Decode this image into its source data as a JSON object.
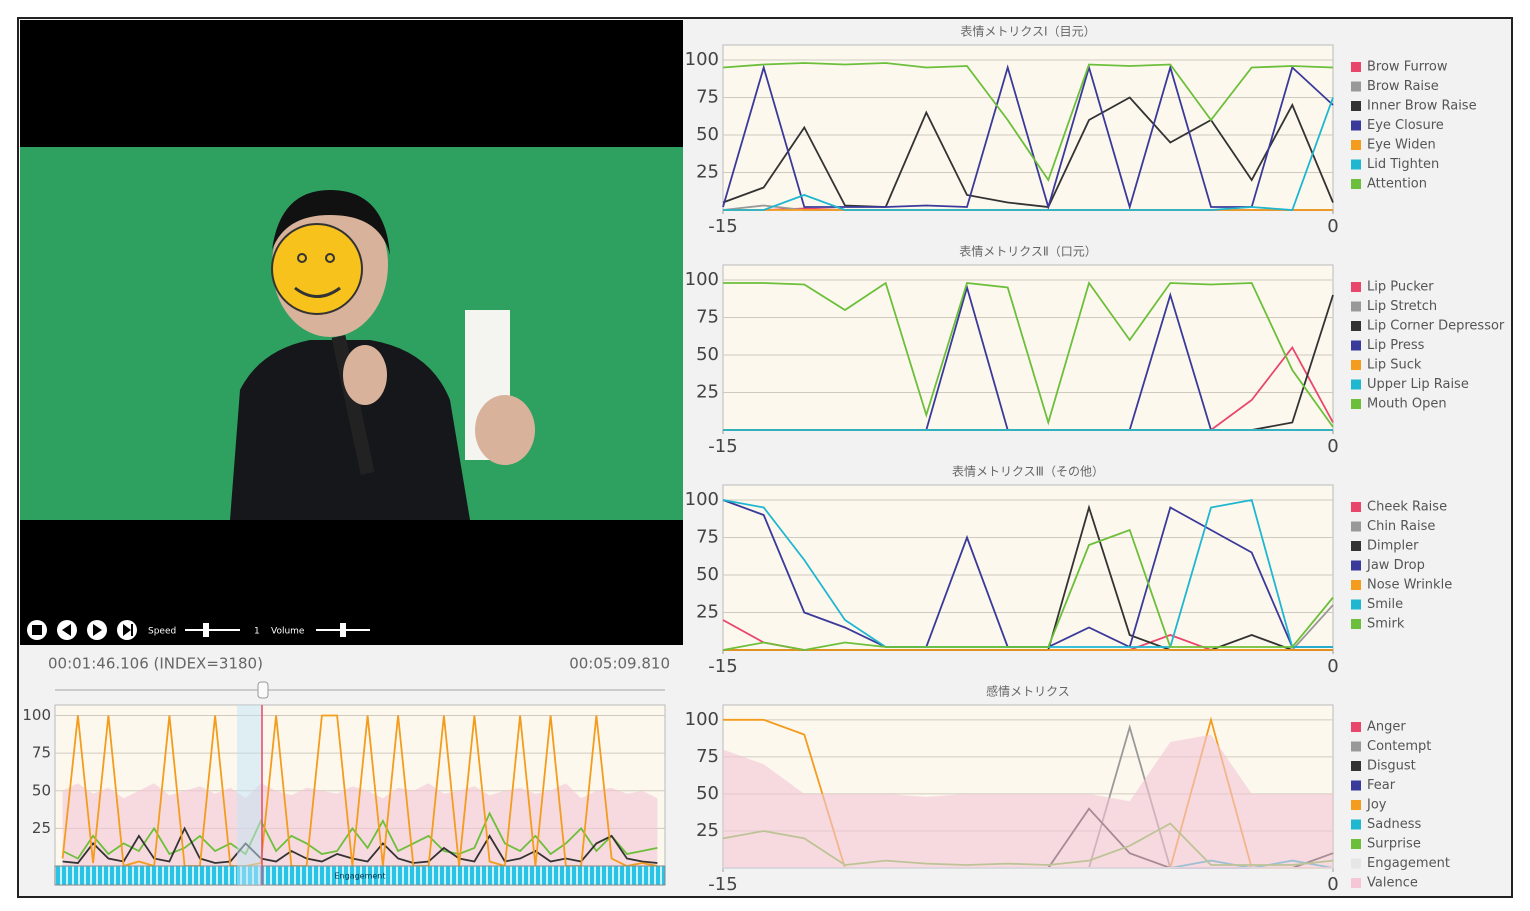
{
  "player": {
    "speed_label": "Speed",
    "speed_value": "1",
    "volume_label": "Volume",
    "current_time": "00:01:46.106 (INDEX=3180)",
    "total_time": "00:05:09.810",
    "band_label": "Engagement"
  },
  "chart_data": [
    {
      "type": "line",
      "ylim": [
        0,
        107
      ],
      "yticks": [
        25,
        50,
        75,
        100
      ],
      "grid": true,
      "series": [
        {
          "color": "#f4c6d6",
          "fill": true,
          "values": [
            50,
            55,
            48,
            52,
            45,
            50,
            55,
            47,
            50,
            53,
            48,
            52,
            45,
            55,
            50,
            47,
            52,
            50,
            48,
            53,
            50,
            45,
            52,
            50,
            55,
            48,
            50,
            53,
            47,
            50,
            52,
            48,
            50,
            55,
            45,
            50,
            52,
            48,
            50,
            45
          ]
        },
        {
          "color": "#6cbf3a",
          "values": [
            10,
            5,
            20,
            8,
            15,
            10,
            25,
            8,
            12,
            20,
            10,
            15,
            8,
            30,
            10,
            20,
            15,
            8,
            10,
            25,
            12,
            30,
            10,
            15,
            20,
            10,
            8,
            12,
            35,
            15,
            10,
            20,
            8,
            15,
            25,
            10,
            20,
            8,
            10,
            12
          ]
        },
        {
          "color": "#333333",
          "values": [
            3,
            2,
            15,
            5,
            3,
            20,
            5,
            3,
            25,
            5,
            2,
            3,
            15,
            5,
            3,
            10,
            5,
            3,
            8,
            5,
            3,
            15,
            5,
            2,
            3,
            12,
            5,
            3,
            20,
            3,
            5,
            10,
            3,
            5,
            3,
            15,
            20,
            5,
            3,
            2
          ]
        },
        {
          "color": "#f39c1e",
          "values": [
            5,
            100,
            2,
            100,
            0,
            3,
            0,
            100,
            0,
            0,
            100,
            0,
            0,
            2,
            100,
            0,
            0,
            100,
            100,
            0,
            100,
            0,
            100,
            0,
            0,
            100,
            0,
            100,
            3,
            0,
            100,
            0,
            100,
            0,
            0,
            100,
            5,
            0,
            2,
            0
          ]
        }
      ]
    },
    {
      "type": "line",
      "title": "表情メトリクスⅠ（目元）",
      "x": [
        -15,
        -14,
        -13,
        -12,
        -11,
        -10,
        -9,
        -8,
        -7,
        -6,
        -5,
        -4,
        -3,
        -2,
        -1,
        0
      ],
      "xlim": [
        -15,
        0
      ],
      "xticks": [
        -15,
        0
      ],
      "ylim": [
        0,
        110
      ],
      "yticks": [
        25,
        50,
        75,
        100
      ],
      "grid": true,
      "series": [
        {
          "name": "Brow Furrow",
          "color": "#e8476b",
          "values": [
            0,
            0,
            1,
            0,
            0,
            0,
            0,
            0,
            0,
            0,
            0,
            0,
            0,
            0,
            0,
            0
          ]
        },
        {
          "name": "Brow Raise",
          "color": "#999999",
          "values": [
            0,
            3,
            0,
            0,
            0,
            0,
            0,
            0,
            0,
            0,
            0,
            0,
            0,
            0,
            0,
            0
          ]
        },
        {
          "name": "Inner Brow Raise",
          "color": "#333333",
          "values": [
            5,
            15,
            55,
            3,
            2,
            65,
            10,
            5,
            2,
            60,
            75,
            45,
            60,
            20,
            70,
            5
          ]
        },
        {
          "name": "Eye Closure",
          "color": "#3a3a9a",
          "values": [
            2,
            95,
            2,
            2,
            2,
            3,
            2,
            95,
            2,
            95,
            2,
            95,
            2,
            2,
            95,
            70
          ]
        },
        {
          "name": "Eye Widen",
          "color": "#f39c1e",
          "values": [
            0,
            0,
            0,
            0,
            0,
            0,
            0,
            0,
            0,
            0,
            0,
            0,
            0,
            0,
            0,
            0
          ]
        },
        {
          "name": "Lid Tighten",
          "color": "#1fb6d0",
          "values": [
            0,
            0,
            10,
            0,
            0,
            0,
            0,
            0,
            0,
            0,
            0,
            0,
            0,
            2,
            0,
            75
          ]
        },
        {
          "name": "Attention",
          "color": "#6cbf3a",
          "values": [
            95,
            97,
            98,
            97,
            98,
            95,
            96,
            60,
            20,
            97,
            96,
            97,
            60,
            95,
            96,
            95
          ]
        }
      ]
    },
    {
      "type": "line",
      "title": "表情メトリクスⅡ（口元）",
      "x": [
        -15,
        -14,
        -13,
        -12,
        -11,
        -10,
        -9,
        -8,
        -7,
        -6,
        -5,
        -4,
        -3,
        -2,
        -1,
        0
      ],
      "xlim": [
        -15,
        0
      ],
      "xticks": [
        -15,
        0
      ],
      "ylim": [
        0,
        110
      ],
      "yticks": [
        25,
        50,
        75,
        100
      ],
      "grid": true,
      "series": [
        {
          "name": "Lip Pucker",
          "color": "#e8476b",
          "values": [
            0,
            0,
            0,
            0,
            0,
            0,
            0,
            0,
            0,
            0,
            0,
            0,
            0,
            20,
            55,
            5
          ]
        },
        {
          "name": "Lip Stretch",
          "color": "#999999",
          "values": [
            0,
            0,
            0,
            0,
            0,
            0,
            0,
            0,
            0,
            0,
            0,
            0,
            0,
            0,
            0,
            0
          ]
        },
        {
          "name": "Lip Corner Depressor",
          "color": "#333333",
          "values": [
            0,
            0,
            0,
            0,
            0,
            0,
            0,
            0,
            0,
            0,
            0,
            0,
            0,
            0,
            5,
            90
          ]
        },
        {
          "name": "Lip Press",
          "color": "#3a3a9a",
          "values": [
            0,
            0,
            0,
            0,
            0,
            0,
            95,
            0,
            0,
            0,
            0,
            90,
            0,
            0,
            0,
            0
          ]
        },
        {
          "name": "Lip Suck",
          "color": "#f39c1e",
          "values": [
            0,
            0,
            0,
            0,
            0,
            0,
            0,
            0,
            0,
            0,
            0,
            0,
            0,
            0,
            0,
            0
          ]
        },
        {
          "name": "Upper Lip Raise",
          "color": "#1fb6d0",
          "values": [
            0,
            0,
            0,
            0,
            0,
            0,
            0,
            0,
            0,
            0,
            0,
            0,
            0,
            0,
            0,
            0
          ]
        },
        {
          "name": "Mouth Open",
          "color": "#6cbf3a",
          "values": [
            98,
            98,
            97,
            80,
            98,
            10,
            98,
            95,
            5,
            98,
            60,
            98,
            97,
            98,
            40,
            2
          ]
        }
      ]
    },
    {
      "type": "line",
      "title": "表情メトリクスⅢ（その他）",
      "x": [
        -15,
        -14,
        -13,
        -12,
        -11,
        -10,
        -9,
        -8,
        -7,
        -6,
        -5,
        -4,
        -3,
        -2,
        -1,
        0
      ],
      "xlim": [
        -15,
        0
      ],
      "xticks": [
        -15,
        0
      ],
      "ylim": [
        0,
        110
      ],
      "yticks": [
        25,
        50,
        75,
        100
      ],
      "grid": true,
      "series": [
        {
          "name": "Cheek Raise",
          "color": "#e8476b",
          "values": [
            20,
            5,
            0,
            0,
            0,
            0,
            0,
            0,
            0,
            0,
            0,
            10,
            0,
            0,
            0,
            0
          ]
        },
        {
          "name": "Chin Raise",
          "color": "#999999",
          "values": [
            0,
            0,
            0,
            0,
            0,
            0,
            0,
            0,
            0,
            0,
            0,
            0,
            0,
            0,
            0,
            30
          ]
        },
        {
          "name": "Dimpler",
          "color": "#333333",
          "values": [
            0,
            0,
            0,
            0,
            0,
            0,
            0,
            0,
            0,
            95,
            10,
            0,
            0,
            10,
            0,
            0
          ]
        },
        {
          "name": "Jaw Drop",
          "color": "#3a3a9a",
          "values": [
            100,
            90,
            25,
            15,
            2,
            2,
            75,
            2,
            2,
            15,
            2,
            95,
            80,
            65,
            2,
            2
          ]
        },
        {
          "name": "Nose Wrinkle",
          "color": "#f39c1e",
          "values": [
            0,
            0,
            0,
            0,
            0,
            0,
            0,
            0,
            0,
            0,
            0,
            0,
            0,
            0,
            0,
            0
          ]
        },
        {
          "name": "Smile",
          "color": "#1fb6d0",
          "values": [
            100,
            95,
            60,
            20,
            2,
            2,
            2,
            2,
            2,
            2,
            2,
            2,
            95,
            100,
            2,
            2
          ]
        },
        {
          "name": "Smirk",
          "color": "#6cbf3a",
          "values": [
            0,
            5,
            0,
            5,
            2,
            2,
            2,
            2,
            2,
            70,
            80,
            2,
            2,
            2,
            2,
            35
          ]
        }
      ]
    },
    {
      "type": "line",
      "title": "感情メトリクス",
      "x": [
        -15,
        -14,
        -13,
        -12,
        -11,
        -10,
        -9,
        -8,
        -7,
        -6,
        -5,
        -4,
        -3,
        -2,
        -1,
        0
      ],
      "xlim": [
        -15,
        0
      ],
      "xticks": [
        -15,
        0
      ],
      "ylim": [
        0,
        110
      ],
      "yticks": [
        25,
        50,
        75,
        100
      ],
      "grid": true,
      "series": [
        {
          "name": "Anger",
          "color": "#e8476b",
          "values": [
            0,
            0,
            0,
            0,
            0,
            0,
            0,
            0,
            0,
            0,
            0,
            0,
            0,
            0,
            0,
            0
          ]
        },
        {
          "name": "Contempt",
          "color": "#999999",
          "values": [
            0,
            0,
            0,
            0,
            0,
            0,
            0,
            0,
            0,
            0,
            95,
            0,
            0,
            0,
            0,
            0
          ]
        },
        {
          "name": "Disgust",
          "color": "#333333",
          "values": [
            0,
            0,
            0,
            0,
            0,
            0,
            0,
            0,
            0,
            40,
            10,
            0,
            0,
            0,
            0,
            10
          ]
        },
        {
          "name": "Fear",
          "color": "#3a3a9a",
          "values": [
            0,
            0,
            0,
            0,
            0,
            0,
            0,
            0,
            0,
            0,
            0,
            0,
            0,
            0,
            0,
            0
          ]
        },
        {
          "name": "Joy",
          "color": "#f39c1e",
          "values": [
            100,
            100,
            90,
            0,
            0,
            0,
            0,
            0,
            0,
            0,
            0,
            0,
            100,
            0,
            0,
            0
          ]
        },
        {
          "name": "Sadness",
          "color": "#1fb6d0",
          "values": [
            0,
            0,
            0,
            0,
            0,
            0,
            0,
            0,
            0,
            0,
            0,
            0,
            5,
            0,
            5,
            0
          ]
        },
        {
          "name": "Surprise",
          "color": "#6cbf3a",
          "values": [
            20,
            25,
            20,
            2,
            5,
            3,
            2,
            3,
            2,
            5,
            15,
            30,
            2,
            2,
            2,
            5
          ]
        },
        {
          "name": "Engagement",
          "color": "#e6e6e6",
          "values": [
            0,
            0,
            0,
            0,
            0,
            0,
            0,
            0,
            0,
            0,
            0,
            0,
            0,
            0,
            0,
            0
          ]
        },
        {
          "name": "Valence",
          "color": "#f4c6d6",
          "fill": true,
          "values": [
            80,
            70,
            50,
            50,
            50,
            48,
            50,
            50,
            50,
            50,
            45,
            85,
            90,
            50,
            50,
            50
          ]
        }
      ]
    }
  ]
}
